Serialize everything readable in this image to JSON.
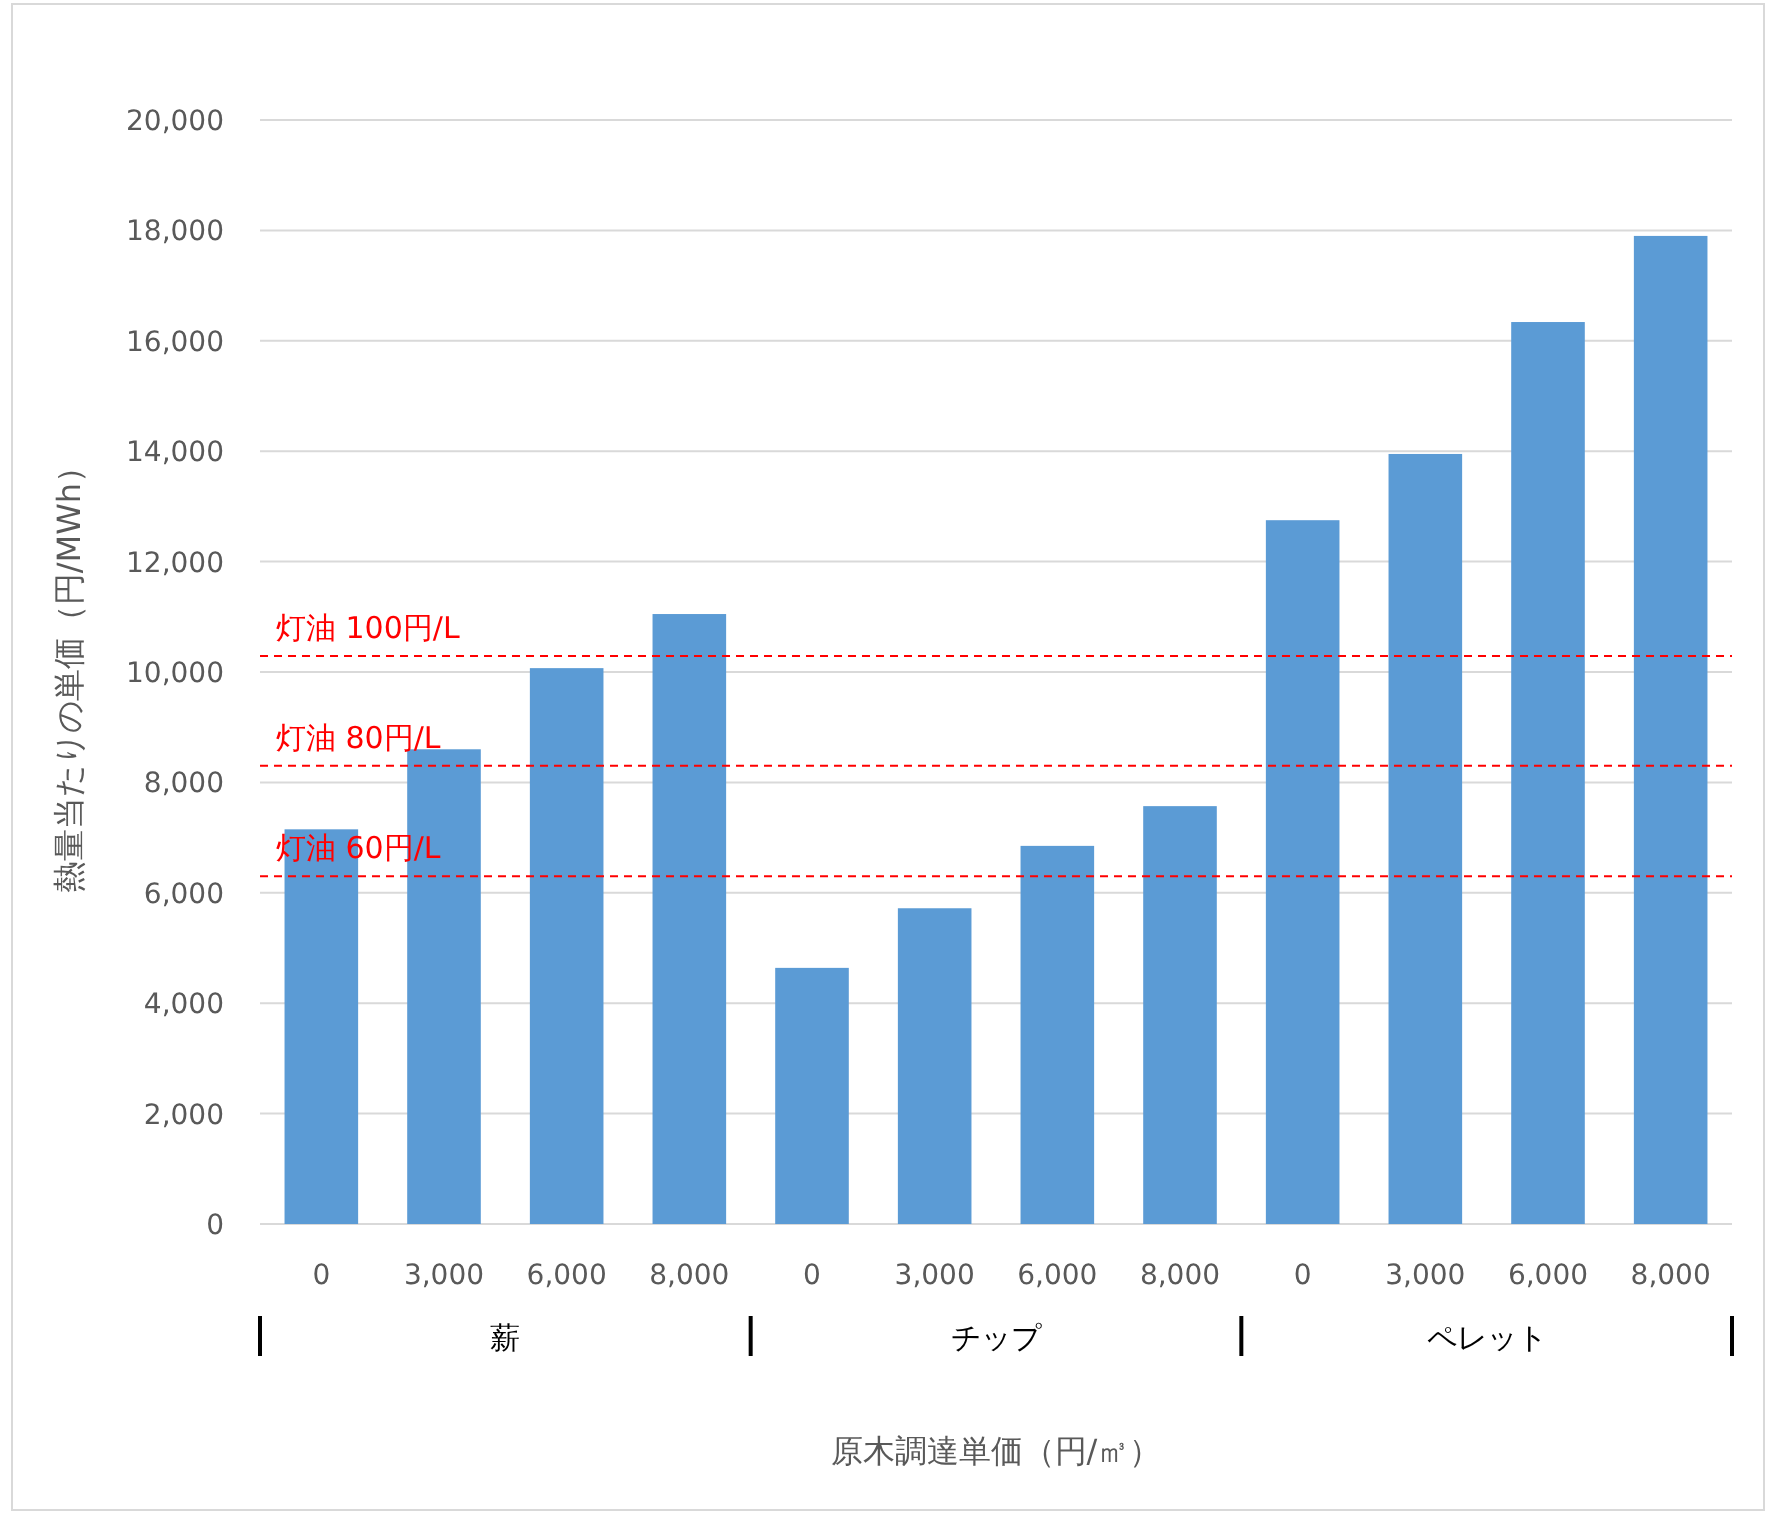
{
  "chart_data": {
    "type": "bar",
    "xlabel": "原木調達単価（円/㎥）",
    "ylabel": "熱量当たりの単価（円/MWh）",
    "categories": [
      "0",
      "3,000",
      "6,000",
      "8,000",
      "0",
      "3,000",
      "6,000",
      "8,000",
      "0",
      "3,000",
      "6,000",
      "8,000"
    ],
    "values": [
      7150,
      8600,
      10070,
      11050,
      4640,
      5720,
      6850,
      7570,
      12750,
      13950,
      16340,
      17900
    ],
    "color": "#5b9bd5",
    "ylim": [
      0,
      20000
    ],
    "yticks": [
      {
        "value": 0,
        "label": "0"
      },
      {
        "value": 2000,
        "label": "2,000"
      },
      {
        "value": 4000,
        "label": "4,000"
      },
      {
        "value": 6000,
        "label": "6,000"
      },
      {
        "value": 8000,
        "label": "8,000"
      },
      {
        "value": 10000,
        "label": "10,000"
      },
      {
        "value": 12000,
        "label": "12,000"
      },
      {
        "value": 14000,
        "label": "14,000"
      },
      {
        "value": 16000,
        "label": "16,000"
      },
      {
        "value": 18000,
        "label": "18,000"
      },
      {
        "value": 20000,
        "label": "20,000"
      }
    ],
    "grid": "y",
    "annotations": [
      "薪",
      "チップ",
      "ペレット"
    ],
    "ref_lines": [
      {
        "axis": "y",
        "value": 10290,
        "label": "灯油  100円/L",
        "color": "#ff0000",
        "line_style": "dashed"
      },
      {
        "axis": "y",
        "value": 8300,
        "label": "灯油  80円/L",
        "color": "#ff0000",
        "line_style": "dashed"
      },
      {
        "axis": "y",
        "value": 6300,
        "label": "灯油  60円/L",
        "color": "#ff0000",
        "line_style": "dashed"
      }
    ]
  }
}
